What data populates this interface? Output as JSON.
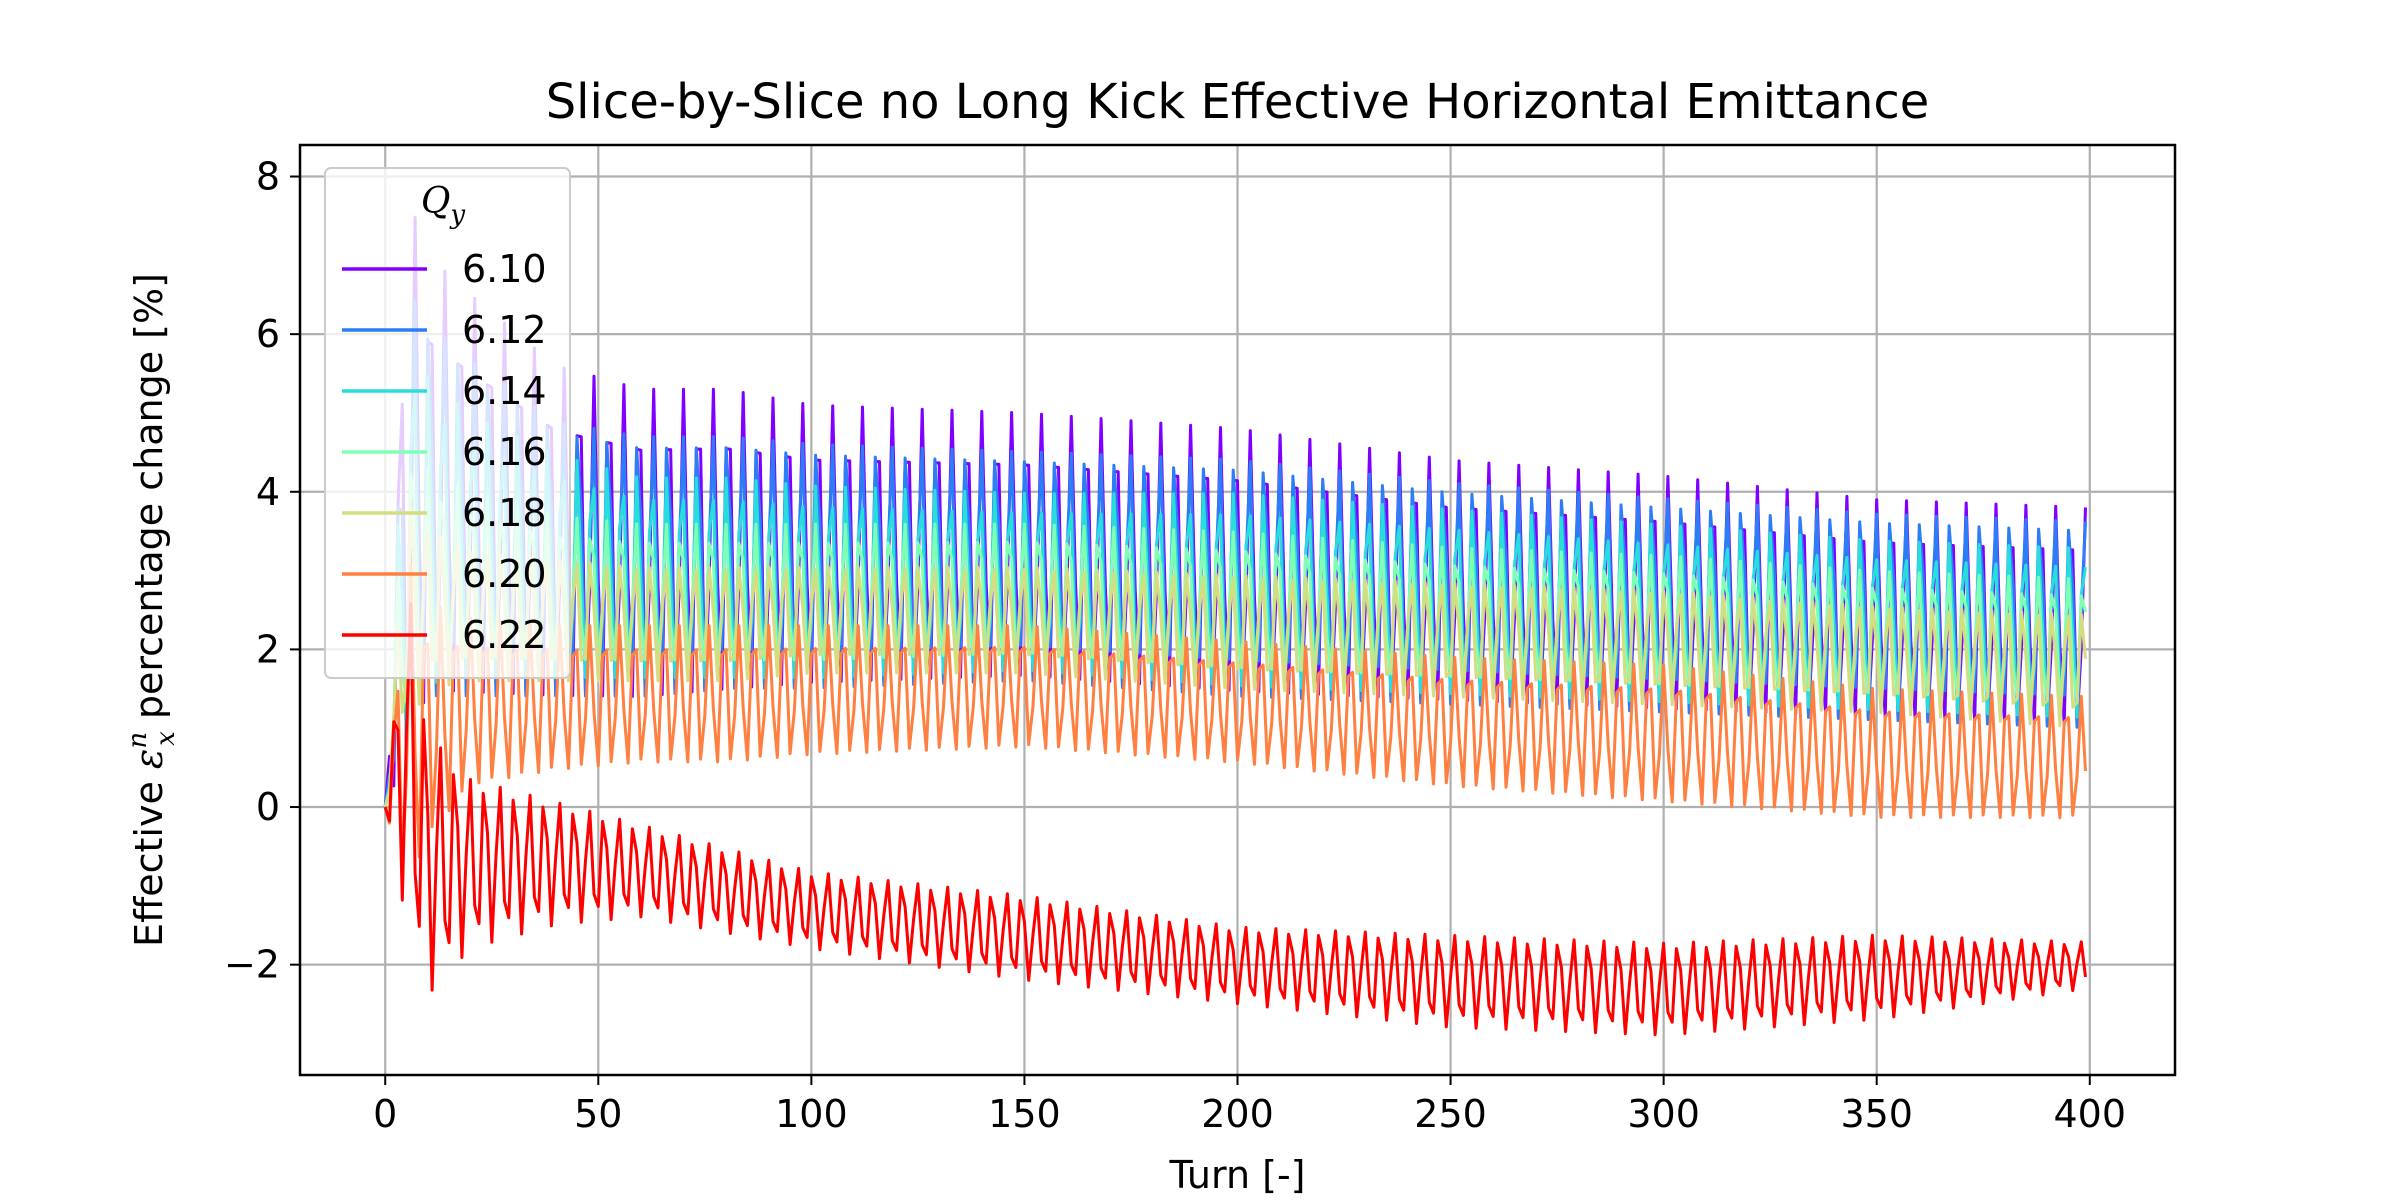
{
  "chart_data": {
    "type": "line",
    "title": "Slice-by-Slice no Long Kick Effective Horizontal Emittance",
    "xlabel": "Turn [-]",
    "ylabel_prefix": "Effective ",
    "ylabel_symbol": "ε",
    "ylabel_sub": "x",
    "ylabel_sup": "n",
    "ylabel_suffix": " percentage change [%]",
    "xlim": [
      -20,
      420
    ],
    "ylim": [
      -3.4,
      8.4
    ],
    "xticks": [
      0,
      50,
      100,
      150,
      200,
      250,
      300,
      350,
      400
    ],
    "xtick_labels": [
      "0",
      "50",
      "100",
      "150",
      "200",
      "250",
      "300",
      "350",
      "400"
    ],
    "yticks": [
      -2,
      0,
      2,
      4,
      6,
      8
    ],
    "ytick_labels": [
      "−2",
      "0",
      "2",
      "4",
      "6",
      "8"
    ],
    "grid": true,
    "legend_placement": "upper-left",
    "legend_title_symbol": "Q",
    "legend_title_sub": "y",
    "oscillation_period_turns": 3.5,
    "series": [
      {
        "name": "6.10",
        "color": "#8000ff",
        "x": [
          0,
          5,
          10,
          20,
          40,
          60,
          80,
          100,
          150,
          200,
          250,
          300,
          350,
          400
        ],
        "upper": [
          0,
          7.8,
          7.0,
          6.5,
          5.6,
          5.3,
          5.3,
          5.1,
          5.0,
          4.8,
          4.4,
          4.2,
          3.9,
          3.8
        ],
        "lower": [
          0,
          0.3,
          1.2,
          1.2,
          1.2,
          1.2,
          1.3,
          1.4,
          1.5,
          1.3,
          1.2,
          1.1,
          1.0,
          0.9
        ]
      },
      {
        "name": "6.12",
        "color": "#2c7ef7",
        "x": [
          0,
          5,
          10,
          20,
          40,
          60,
          80,
          100,
          150,
          200,
          250,
          300,
          350,
          400
        ],
        "upper": [
          0,
          6.8,
          6.3,
          5.8,
          5.0,
          4.8,
          4.8,
          4.7,
          4.6,
          4.5,
          4.2,
          4.0,
          3.8,
          3.7
        ],
        "lower": [
          0,
          0.6,
          1.4,
          1.4,
          1.4,
          1.4,
          1.5,
          1.5,
          1.6,
          1.4,
          1.3,
          1.2,
          1.1,
          1.0
        ]
      },
      {
        "name": "6.14",
        "color": "#2adddd",
        "x": [
          0,
          5,
          10,
          20,
          40,
          60,
          80,
          100,
          150,
          200,
          250,
          300,
          350,
          400
        ],
        "upper": [
          0,
          6.0,
          5.5,
          5.0,
          4.5,
          4.2,
          4.2,
          4.1,
          4.0,
          4.0,
          3.8,
          3.6,
          3.4,
          3.3
        ],
        "lower": [
          0,
          0.8,
          1.5,
          1.6,
          1.6,
          1.6,
          1.6,
          1.6,
          1.7,
          1.5,
          1.4,
          1.3,
          1.2,
          1.1
        ]
      },
      {
        "name": "6.16",
        "color": "#80ffb4",
        "x": [
          0,
          5,
          10,
          20,
          40,
          60,
          80,
          100,
          150,
          200,
          250,
          300,
          350,
          400
        ],
        "upper": [
          0,
          4.8,
          4.3,
          4.0,
          3.7,
          3.6,
          3.6,
          3.6,
          3.6,
          3.5,
          3.3,
          3.2,
          3.0,
          2.9
        ],
        "lower": [
          0,
          1.0,
          1.6,
          1.7,
          1.7,
          1.7,
          1.7,
          1.7,
          1.8,
          1.6,
          1.5,
          1.4,
          1.3,
          1.2
        ]
      },
      {
        "name": "6.18",
        "color": "#d4dd80",
        "x": [
          0,
          5,
          10,
          20,
          40,
          60,
          80,
          100,
          150,
          200,
          250,
          300,
          350,
          400
        ],
        "upper": [
          0,
          4.0,
          3.6,
          3.3,
          3.2,
          3.1,
          3.1,
          3.1,
          3.1,
          3.0,
          2.9,
          2.8,
          2.6,
          2.5
        ],
        "lower": [
          0,
          1.0,
          1.5,
          1.6,
          1.6,
          1.6,
          1.6,
          1.7,
          1.7,
          1.5,
          1.4,
          1.3,
          1.2,
          1.0
        ]
      },
      {
        "name": "6.20",
        "color": "#ff8040",
        "x": [
          0,
          5,
          10,
          20,
          40,
          60,
          80,
          100,
          150,
          200,
          250,
          300,
          350,
          400
        ],
        "upper": [
          0,
          3.2,
          2.6,
          2.4,
          2.3,
          2.3,
          2.3,
          2.3,
          2.3,
          2.1,
          1.9,
          1.8,
          1.5,
          1.4
        ],
        "lower": [
          0,
          -1.2,
          -0.5,
          0.2,
          0.4,
          0.5,
          0.5,
          0.6,
          0.7,
          0.5,
          0.2,
          0.0,
          -0.2,
          -0.2
        ]
      },
      {
        "name": "6.22",
        "color": "#ff0000",
        "x": [
          0,
          5,
          10,
          20,
          40,
          60,
          80,
          100,
          150,
          200,
          250,
          300,
          350,
          400
        ],
        "upper": [
          0,
          3.1,
          1.0,
          0.4,
          0.1,
          -0.2,
          -0.5,
          -0.8,
          -1.1,
          -1.5,
          -1.6,
          -1.7,
          -1.6,
          -1.7
        ],
        "lower": [
          0,
          -1.5,
          -2.4,
          -1.8,
          -1.5,
          -1.4,
          -1.6,
          -1.8,
          -2.2,
          -2.5,
          -2.8,
          -2.9,
          -2.7,
          -2.3
        ]
      }
    ]
  }
}
